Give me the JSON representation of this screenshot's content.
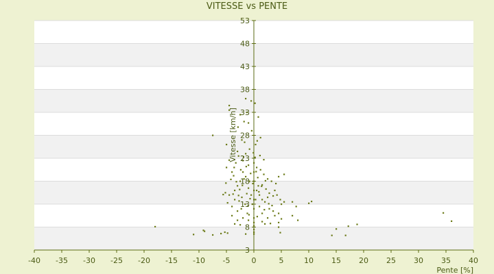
{
  "chart_data": {
    "type": "scatter",
    "title": "VITESSE vs PENTE",
    "xlabel": "Pente [%]",
    "ylabel": "Vitesse [km/h]",
    "xlim": [
      -40,
      40
    ],
    "ylim": [
      3,
      53
    ],
    "xticks": [
      -40,
      -35,
      -30,
      -25,
      -20,
      -15,
      -10,
      -5,
      0,
      5,
      10,
      15,
      20,
      25,
      30,
      35,
      40
    ],
    "yticks": [
      3,
      8,
      13,
      18,
      23,
      28,
      33,
      38,
      43,
      48,
      53
    ],
    "grid": true,
    "colors": {
      "background": "#eef2d2",
      "plot_band_light": "#ffffff",
      "plot_band_dark": "#f1f1f1",
      "axis": "#5a6a10",
      "marker": "#6b7a18"
    },
    "points": [
      [
        -18,
        8.1
      ],
      [
        -11,
        6.4
      ],
      [
        -9.2,
        7.3
      ],
      [
        -9,
        7.1
      ],
      [
        -7.5,
        6.3
      ],
      [
        -6,
        6.6
      ],
      [
        -5.3,
        6.9
      ],
      [
        -4.8,
        6.7
      ],
      [
        -3.5,
        8.7
      ],
      [
        -2.5,
        8.5
      ],
      [
        -1.5,
        6.5
      ],
      [
        0,
        6.5
      ],
      [
        0,
        6.9
      ],
      [
        0,
        7.5
      ],
      [
        0,
        8.3
      ],
      [
        0,
        9
      ],
      [
        0,
        10
      ],
      [
        0,
        12
      ],
      [
        0,
        14
      ],
      [
        0,
        16
      ],
      [
        0,
        18
      ],
      [
        0,
        20
      ],
      [
        0,
        22
      ],
      [
        -0.5,
        15
      ],
      [
        0.5,
        16
      ],
      [
        0.3,
        14
      ],
      [
        -0.3,
        13
      ],
      [
        0.8,
        17
      ],
      [
        -0.8,
        18
      ],
      [
        1,
        15
      ],
      [
        1.5,
        14
      ],
      [
        2,
        13.5
      ],
      [
        2.5,
        14.5
      ],
      [
        -1,
        16.5
      ],
      [
        -1.5,
        19
      ],
      [
        -2,
        20
      ],
      [
        -2.5,
        18
      ],
      [
        -3,
        17
      ],
      [
        -3.5,
        16
      ],
      [
        -4,
        20
      ],
      [
        -4.5,
        15
      ],
      [
        -5,
        21
      ],
      [
        -5,
        26
      ],
      [
        -7.5,
        28
      ],
      [
        -4.5,
        34.5
      ],
      [
        -1.5,
        36
      ],
      [
        -0.5,
        35.5
      ],
      [
        0.8,
        32
      ],
      [
        -2.5,
        32.5
      ],
      [
        -4.5,
        33.5
      ],
      [
        -1.8,
        31
      ],
      [
        -1,
        30.7
      ],
      [
        1.2,
        27.5
      ],
      [
        0.3,
        26
      ],
      [
        -0.8,
        25
      ],
      [
        -1.5,
        24
      ],
      [
        -2.8,
        23.5
      ],
      [
        -3.3,
        22
      ],
      [
        -2,
        22.5
      ],
      [
        -1,
        21.5
      ],
      [
        0.5,
        21
      ],
      [
        1.2,
        20.5
      ],
      [
        1.8,
        19.5
      ],
      [
        2.5,
        18.5
      ],
      [
        3.2,
        18
      ],
      [
        4,
        17.5
      ],
      [
        4.5,
        19
      ],
      [
        5.5,
        19.5
      ],
      [
        3.8,
        16
      ],
      [
        4.2,
        15
      ],
      [
        4.8,
        14
      ],
      [
        5,
        13
      ],
      [
        2.8,
        12
      ],
      [
        3.5,
        11.5
      ],
      [
        4.5,
        11
      ],
      [
        5.5,
        13.5
      ],
      [
        7,
        13.5
      ],
      [
        7.7,
        12.5
      ],
      [
        10,
        13.2
      ],
      [
        10.5,
        13.6
      ],
      [
        7,
        10.5
      ],
      [
        8,
        9.5
      ],
      [
        4.5,
        9
      ],
      [
        5,
        9.8
      ],
      [
        3.8,
        10.5
      ],
      [
        2.5,
        10
      ],
      [
        1.5,
        11
      ],
      [
        1,
        12.5
      ],
      [
        -1.2,
        11
      ],
      [
        -2.3,
        12
      ],
      [
        -3,
        11.5
      ],
      [
        -4,
        12.5
      ],
      [
        -4.8,
        13.3
      ],
      [
        -5.2,
        15.5
      ],
      [
        -3.5,
        14
      ],
      [
        -2.2,
        14.5
      ],
      [
        -1.3,
        15.3
      ],
      [
        -0.2,
        17.5
      ],
      [
        0.7,
        18.8
      ],
      [
        1.5,
        17.2
      ],
      [
        2.2,
        16.3
      ],
      [
        2.8,
        15.4
      ],
      [
        3.5,
        14.8
      ],
      [
        -1.6,
        13
      ],
      [
        -2.7,
        13.7
      ],
      [
        -3.8,
        15.2
      ],
      [
        -2,
        10
      ],
      [
        -3,
        9.5
      ],
      [
        -4,
        10.5
      ],
      [
        -1,
        9.5
      ],
      [
        1.5,
        9.2
      ],
      [
        2,
        8.7
      ],
      [
        3,
        8.8
      ],
      [
        4.5,
        8
      ],
      [
        4.8,
        6.8
      ],
      [
        14.2,
        6.2
      ],
      [
        15,
        7.6
      ],
      [
        16.7,
        6.2
      ],
      [
        17.2,
        8.2
      ],
      [
        18.8,
        8.6
      ],
      [
        34.5,
        11.1
      ],
      [
        36,
        9.3
      ],
      [
        -2.2,
        27
      ],
      [
        -1.7,
        26.5
      ],
      [
        -2.4,
        20.5
      ],
      [
        -0.6,
        19.7
      ],
      [
        0.2,
        23.2
      ],
      [
        -1.9,
        23.3
      ],
      [
        -3,
        24.5
      ],
      [
        -0.4,
        29
      ],
      [
        0.6,
        26.8
      ],
      [
        -2.9,
        29.8
      ],
      [
        -1.3,
        33
      ],
      [
        0.2,
        35
      ],
      [
        -4.2,
        18.4
      ],
      [
        -3.7,
        19.2
      ],
      [
        1.8,
        22.7
      ],
      [
        2.1,
        18.1
      ],
      [
        1.4,
        16.9
      ],
      [
        0.9,
        15.7
      ],
      [
        -0.7,
        14.2
      ],
      [
        -1.1,
        12.6
      ],
      [
        -2.6,
        16.2
      ],
      [
        -3.2,
        17.9
      ],
      [
        -0.9,
        10.7
      ],
      [
        0.6,
        10.3
      ],
      [
        1.9,
        11.8
      ],
      [
        2.7,
        13.1
      ],
      [
        3.3,
        12.7
      ],
      [
        -4.5,
        22.6
      ],
      [
        -5.1,
        17.6
      ],
      [
        -5.6,
        15.1
      ],
      [
        -1.4,
        21.2
      ],
      [
        0.4,
        20.1
      ],
      [
        -0.1,
        24.2
      ],
      [
        1.1,
        23.6
      ],
      [
        -2.1,
        17.1
      ],
      [
        -3.6,
        21
      ],
      [
        -2.8,
        14.9
      ],
      [
        -1.8,
        18.5
      ]
    ]
  }
}
